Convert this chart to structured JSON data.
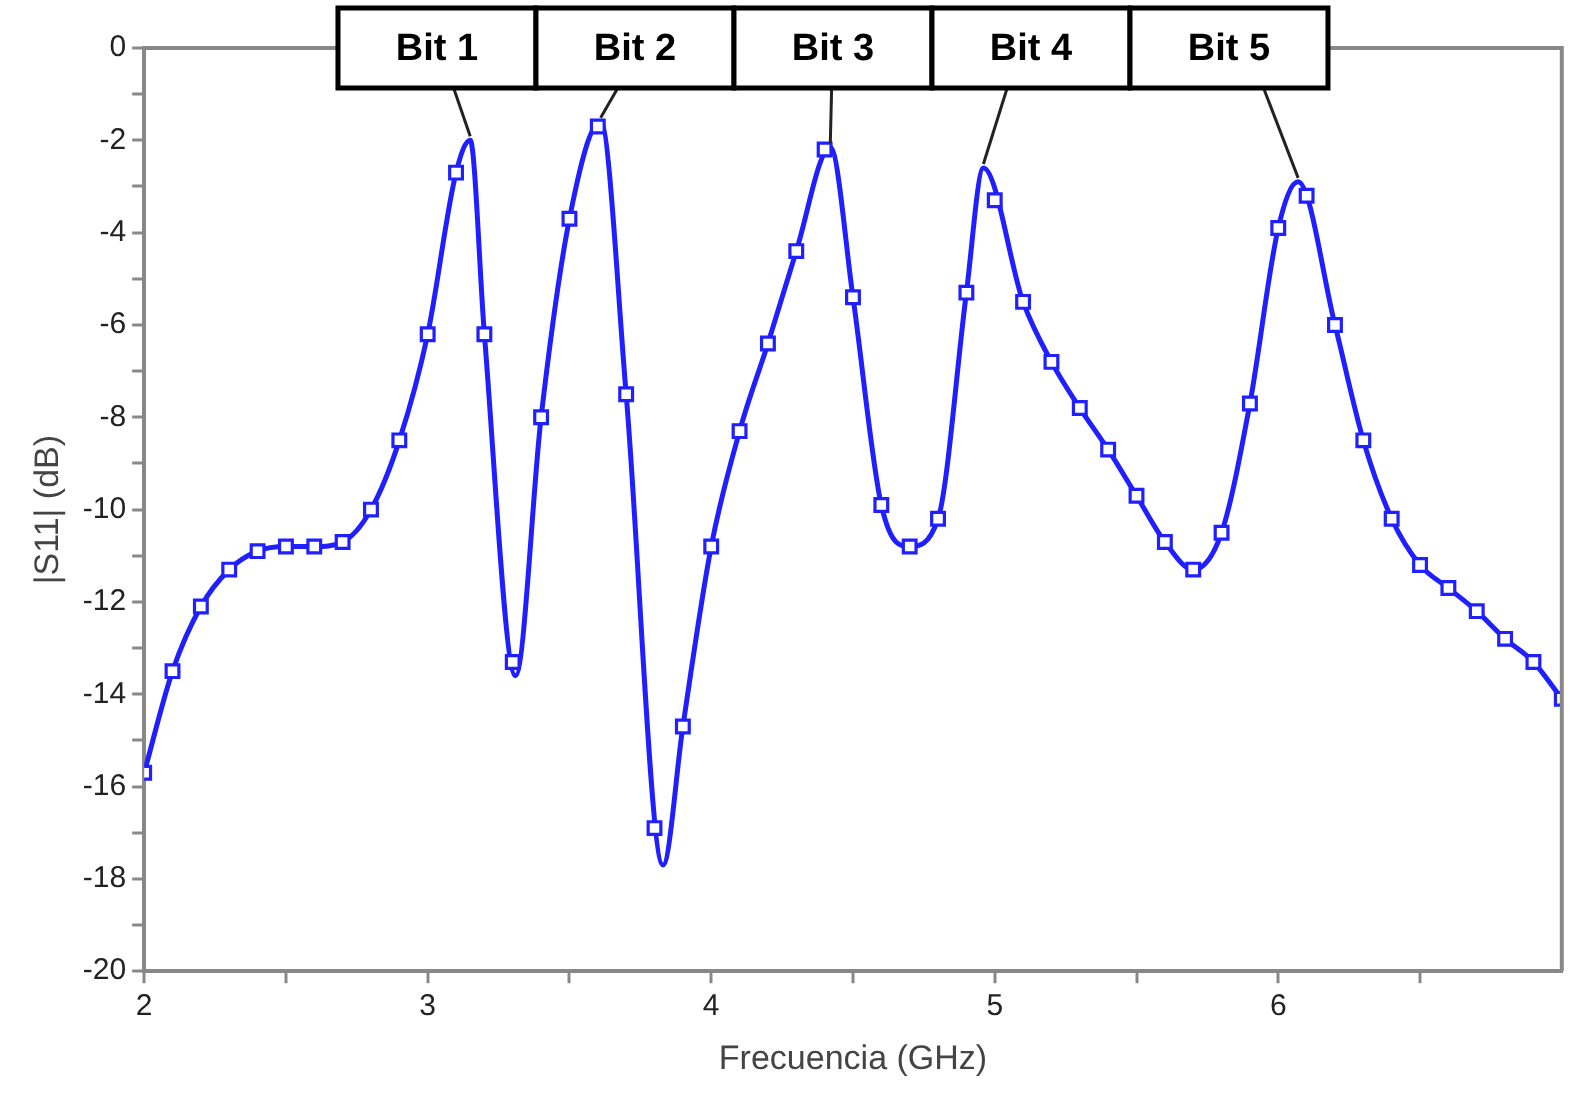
{
  "chart_data": {
    "type": "line",
    "xlabel": "Frecuencia (GHz)",
    "ylabel": "|S11| (dB)",
    "xlim": [
      2,
      7
    ],
    "xticks": [
      2,
      {
        "value": 2.5,
        "label": null
      },
      3,
      {
        "value": 3.5,
        "label": null
      },
      4,
      {
        "value": 4.5,
        "label": null
      },
      5,
      {
        "value": 5.5,
        "label": null
      },
      6,
      {
        "value": 6.5,
        "label": null
      }
    ],
    "ylim": [
      -20,
      0
    ],
    "yticks": [
      -20,
      {
        "value": -19,
        "label": null
      },
      -18,
      {
        "value": -17,
        "label": null
      },
      -16,
      {
        "value": -15,
        "label": null
      },
      -14,
      {
        "value": -13,
        "label": null
      },
      -12,
      {
        "value": -11,
        "label": null
      },
      -10,
      {
        "value": -9,
        "label": null
      },
      -8,
      {
        "value": -7,
        "label": null
      },
      -6,
      {
        "value": -5,
        "label": null
      },
      -4,
      {
        "value": -3,
        "label": null
      },
      -2,
      {
        "value": -1,
        "label": null
      },
      0
    ],
    "grid": false,
    "legend": false,
    "series": [
      {
        "marker": "none",
        "color": "#1f1fff",
        "x": [
          2.0,
          2.1,
          2.2,
          2.3,
          2.4,
          2.5,
          2.6,
          2.7,
          2.8,
          2.9,
          3.0,
          3.1,
          3.15,
          3.2,
          3.31,
          3.4,
          3.5,
          3.61,
          3.7,
          3.83,
          3.9,
          4.0,
          4.1,
          4.2,
          4.3,
          4.42,
          4.5,
          4.6,
          4.7,
          4.8,
          4.9,
          4.96,
          5.1,
          5.2,
          5.3,
          5.4,
          5.5,
          5.6,
          5.7,
          5.8,
          5.9,
          6.0,
          6.07,
          6.2,
          6.3,
          6.4,
          6.5,
          6.6,
          6.7,
          6.8,
          6.9,
          7.0
        ],
        "values": [
          -15.7,
          -13.5,
          -12.1,
          -11.3,
          -10.9,
          -10.8,
          -10.8,
          -10.7,
          -10.0,
          -8.5,
          -6.2,
          -2.7,
          -2.0,
          -6.2,
          -13.6,
          -8.0,
          -3.7,
          -1.6,
          -7.5,
          -17.7,
          -14.7,
          -10.8,
          -8.3,
          -6.4,
          -4.4,
          -2.15,
          -5.4,
          -9.9,
          -10.8,
          -10.2,
          -5.3,
          -2.6,
          -5.5,
          -6.8,
          -7.8,
          -8.7,
          -9.7,
          -10.7,
          -11.3,
          -10.5,
          -7.7,
          -3.9,
          -2.9,
          -6.0,
          -8.5,
          -10.2,
          -11.2,
          -11.7,
          -12.2,
          -12.8,
          -13.3,
          -14.1
        ]
      },
      {
        "type": "scatter",
        "marker": "square",
        "color": "#1f1fff",
        "x": [
          2.0,
          2.1,
          2.2,
          2.3,
          2.4,
          2.5,
          2.6,
          2.7,
          2.8,
          2.9,
          3.0,
          3.1,
          3.2,
          3.3,
          3.4,
          3.5,
          3.6,
          3.7,
          3.8,
          3.9,
          4.0,
          4.1,
          4.2,
          4.3,
          4.4,
          4.5,
          4.6,
          4.7,
          4.8,
          4.9,
          5.0,
          5.1,
          5.2,
          5.3,
          5.4,
          5.5,
          5.6,
          5.7,
          5.8,
          5.9,
          6.0,
          6.1,
          6.2,
          6.3,
          6.4,
          6.5,
          6.6,
          6.7,
          6.8,
          6.9,
          7.0
        ],
        "values": [
          -15.7,
          -13.5,
          -12.1,
          -11.3,
          -10.9,
          -10.8,
          -10.8,
          -10.7,
          -10.0,
          -8.5,
          -6.2,
          -2.7,
          -6.2,
          -13.3,
          -8.0,
          -3.7,
          -1.7,
          -7.5,
          -16.9,
          -14.7,
          -10.8,
          -8.3,
          -6.4,
          -4.4,
          -2.2,
          -5.4,
          -9.9,
          -10.8,
          -10.2,
          -5.3,
          -3.3,
          -5.5,
          -6.8,
          -7.8,
          -8.7,
          -9.7,
          -10.7,
          -11.3,
          -10.5,
          -7.7,
          -3.9,
          -3.2,
          -6.0,
          -8.5,
          -10.2,
          -11.2,
          -11.7,
          -12.2,
          -12.8,
          -13.3,
          -14.1
        ]
      }
    ],
    "annotations": [
      {
        "text": "Bit 1",
        "x": 3.15,
        "y": -2.0
      },
      {
        "text": "Bit 2",
        "x": 3.61,
        "y": -1.6
      },
      {
        "text": "Bit 3",
        "x": 4.42,
        "y": -2.15
      },
      {
        "text": "Bit 4",
        "x": 4.96,
        "y": -2.6
      },
      {
        "text": "Bit 5",
        "x": 6.07,
        "y": -2.9
      }
    ]
  }
}
